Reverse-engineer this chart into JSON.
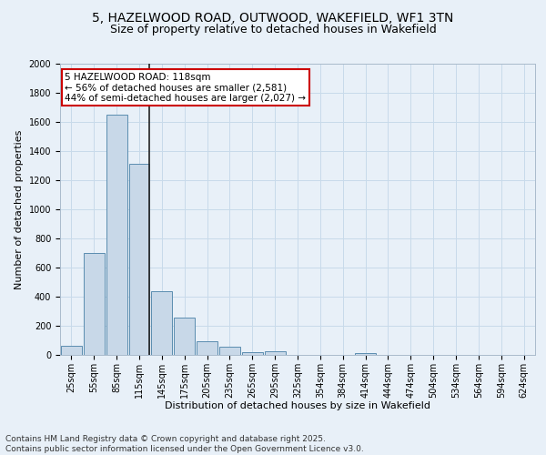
{
  "title_line1": "5, HAZELWOOD ROAD, OUTWOOD, WAKEFIELD, WF1 3TN",
  "title_line2": "Size of property relative to detached houses in Wakefield",
  "xlabel": "Distribution of detached houses by size in Wakefield",
  "ylabel": "Number of detached properties",
  "categories": [
    "25sqm",
    "55sqm",
    "85sqm",
    "115sqm",
    "145sqm",
    "175sqm",
    "205sqm",
    "235sqm",
    "265sqm",
    "295sqm",
    "325sqm",
    "354sqm",
    "384sqm",
    "414sqm",
    "444sqm",
    "474sqm",
    "504sqm",
    "534sqm",
    "564sqm",
    "594sqm",
    "624sqm"
  ],
  "values": [
    65,
    700,
    1650,
    1310,
    440,
    255,
    95,
    55,
    20,
    25,
    0,
    0,
    0,
    10,
    0,
    0,
    0,
    0,
    0,
    0,
    0
  ],
  "bar_color": "#c8d8e8",
  "bar_edge_color": "#5b8db0",
  "bar_linewidth": 0.7,
  "marker_bar_index": 3,
  "marker_color": "#222222",
  "ylim": [
    0,
    2000
  ],
  "yticks": [
    0,
    200,
    400,
    600,
    800,
    1000,
    1200,
    1400,
    1600,
    1800,
    2000
  ],
  "grid_color": "#c8daea",
  "background_color": "#e8f0f8",
  "annotation_text": "5 HAZELWOOD ROAD: 118sqm\n← 56% of detached houses are smaller (2,581)\n44% of semi-detached houses are larger (2,027) →",
  "annotation_box_facecolor": "#ffffff",
  "annotation_box_edge_color": "#cc0000",
  "footer_line1": "Contains HM Land Registry data © Crown copyright and database right 2025.",
  "footer_line2": "Contains public sector information licensed under the Open Government Licence v3.0.",
  "title_fontsize": 10,
  "subtitle_fontsize": 9,
  "axis_label_fontsize": 8,
  "tick_fontsize": 7,
  "annotation_fontsize": 7.5,
  "footer_fontsize": 6.5
}
